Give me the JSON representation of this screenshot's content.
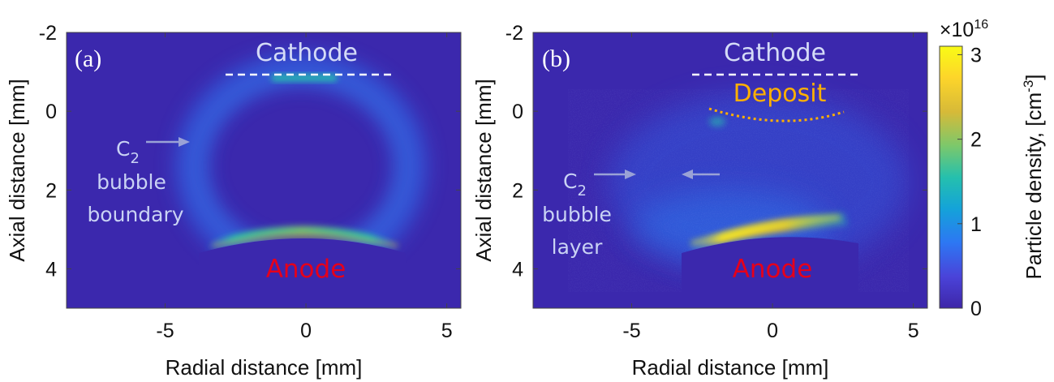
{
  "chart_data": [
    {
      "type": "heatmap",
      "panel_label": "(a)",
      "xlabel": "Radial distance [mm]",
      "ylabel": "Axial distance [mm]",
      "xlim": [
        -8.5,
        5.5
      ],
      "ylim": [
        -2,
        5
      ],
      "y_reversed": true,
      "x_ticks": [
        "-5",
        "0",
        "5"
      ],
      "y_ticks": [
        "-2",
        "0",
        "2",
        "4"
      ],
      "annotations": {
        "cathode": "Cathode",
        "anode": "Anode",
        "c2_main": "C",
        "c2_sub": "2",
        "line2": "bubble",
        "line3": "boundary"
      }
    },
    {
      "type": "heatmap",
      "panel_label": "(b)",
      "xlabel": "Radial distance [mm]",
      "ylabel": "Axial distance [mm]",
      "xlim": [
        -8.5,
        5.5
      ],
      "ylim": [
        -2,
        5
      ],
      "y_reversed": true,
      "x_ticks": [
        "-5",
        "0",
        "5"
      ],
      "y_ticks": [
        "-2",
        "0",
        "2",
        "4"
      ],
      "annotations": {
        "cathode": "Cathode",
        "deposit": "Deposit",
        "anode": "Anode",
        "c2_main": "C",
        "c2_sub": "2",
        "line2": "bubble",
        "line3": "layer"
      }
    }
  ],
  "colorbar": {
    "label": "Particle density, [cm",
    "label_exp": "-3",
    "label_end": "]",
    "multiplier_base": "×10",
    "multiplier_exp": "16",
    "range": [
      0,
      3.1
    ],
    "ticks": [
      "0",
      "1",
      "2",
      "3"
    ],
    "colormap": "parula",
    "colors": [
      "#3e26a8",
      "#4a43d9",
      "#2d77f3",
      "#14a3d9",
      "#25c0ad",
      "#7cc86b",
      "#d7ba38",
      "#fdd52a",
      "#f9fb15"
    ]
  },
  "colors": {
    "background": "#3b28ad",
    "arrow": "#9aa2d6",
    "cathode_line": "#ffffff",
    "deposit_line": "#ffb000",
    "anode_text": "#e6001a"
  }
}
